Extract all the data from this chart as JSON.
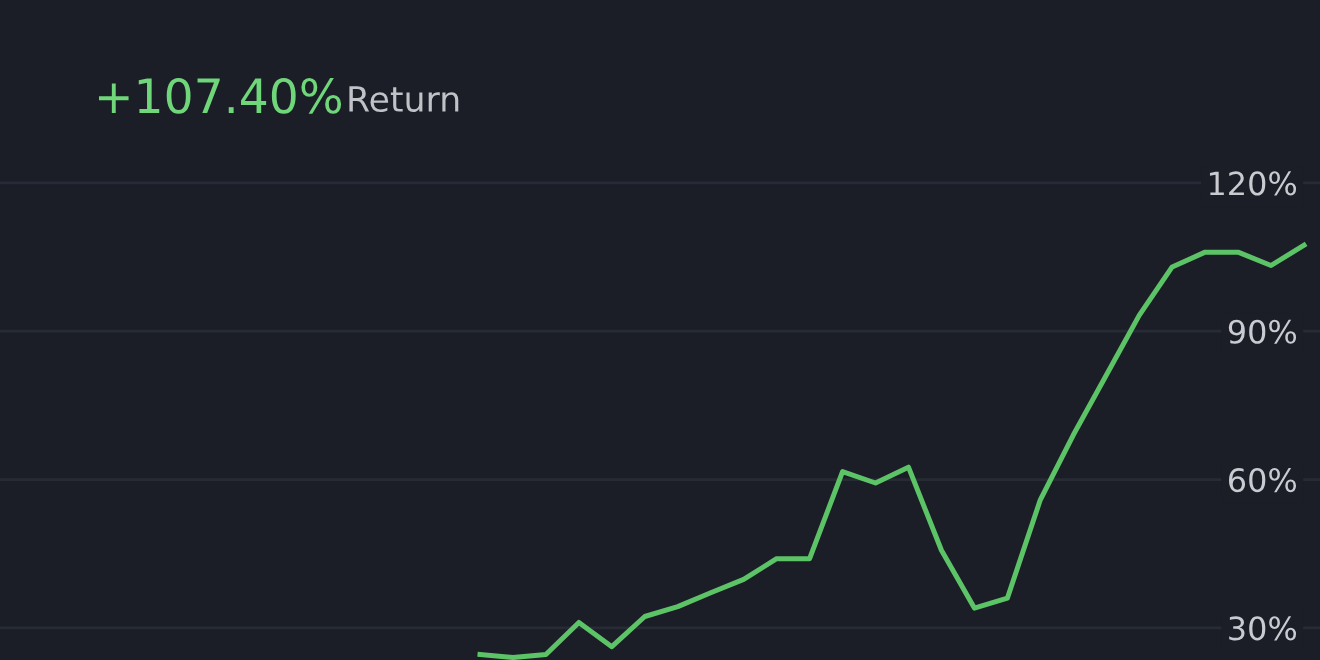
{
  "chart_data": {
    "type": "line",
    "title": "+107.40%",
    "subtitle": "Return",
    "categories": [
      null,
      null,
      null,
      null,
      null,
      null,
      null,
      null,
      null,
      null,
      null,
      null,
      null,
      null,
      null,
      null,
      null,
      null,
      null,
      null,
      null,
      null,
      null,
      null,
      null,
      null
    ],
    "series": [
      {
        "color": "#5cc466",
        "values": [
          24.6,
          24.0,
          24.6,
          31.1,
          26.2,
          32.3,
          34.3,
          37.1,
          39.8,
          44.0,
          44.0,
          61.6,
          59.3,
          62.5,
          45.7,
          34.0,
          36.0,
          55.9,
          69.0,
          81.1,
          93.2,
          103.0,
          106.0,
          106.0,
          103.3,
          107.4
        ]
      }
    ],
    "ylim": [
      23.5,
      157
    ],
    "yticks": [
      {
        "value": 30,
        "label": "30%"
      },
      {
        "value": 60,
        "label": "60%"
      },
      {
        "value": 90,
        "label": "90%"
      },
      {
        "value": 120,
        "label": "120%"
      }
    ],
    "grid": "y",
    "marker": "none",
    "line_style": "solid",
    "tick_labels": "y"
  }
}
